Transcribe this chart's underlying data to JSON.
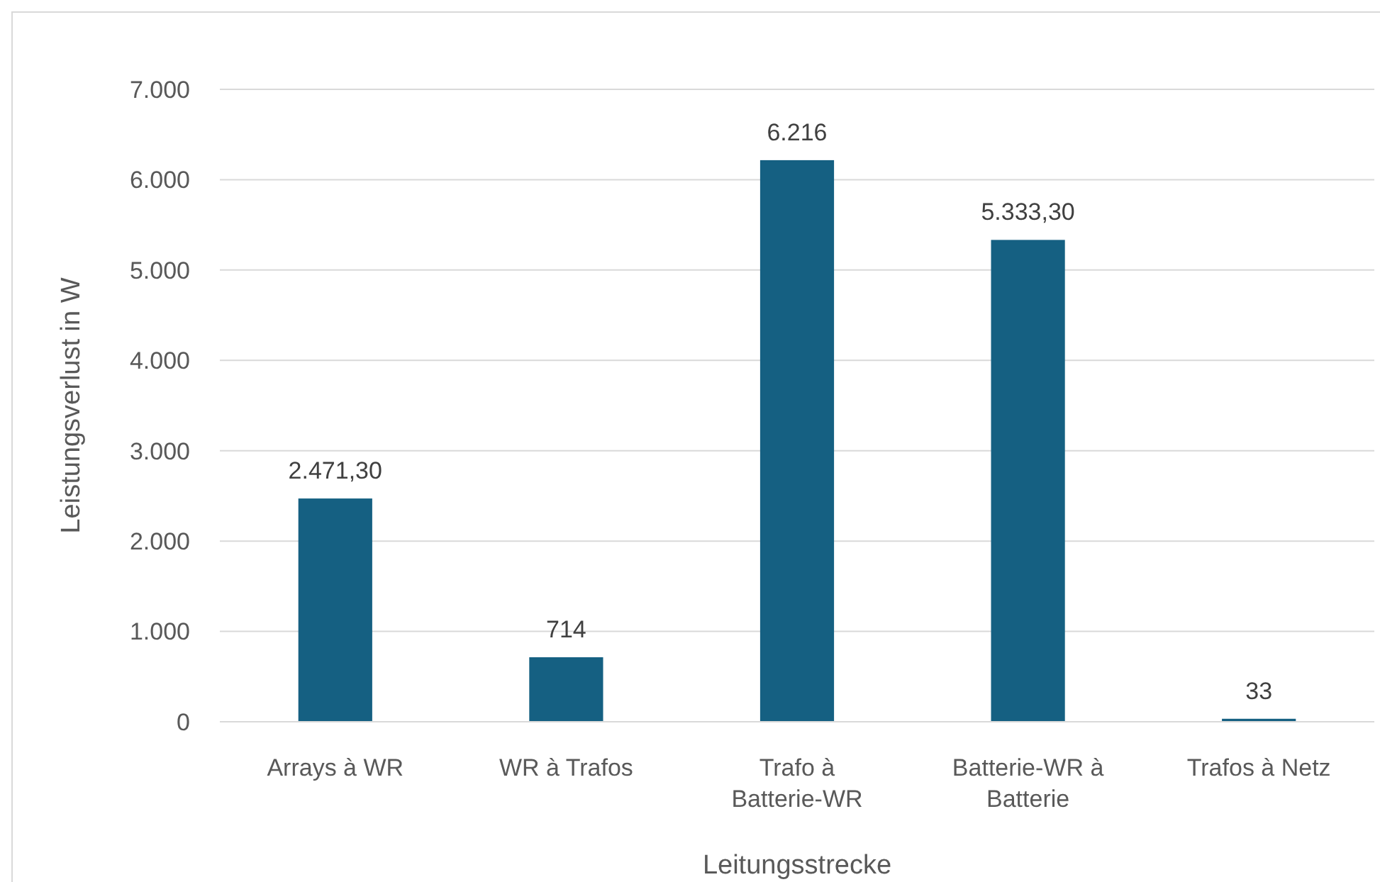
{
  "chart_data": {
    "type": "bar",
    "xlabel": "Leitungsstrecke",
    "ylabel": "Leistungsverlust in W",
    "categories": [
      "Arrays à WR",
      "WR à Trafos",
      "Trafo à Batterie-WR",
      "Batterie-WR à Batterie",
      "Trafos à Netz"
    ],
    "values": [
      2471.3,
      714,
      6216,
      5333.3,
      33
    ],
    "value_labels": [
      "2.471,30",
      "714",
      "6.216",
      "5.333,30",
      "33"
    ],
    "color": "#156082",
    "ylim": [
      0,
      7000
    ],
    "yticks": [
      {
        "value": 0,
        "label": "0"
      },
      {
        "value": 1000,
        "label": "1.000"
      },
      {
        "value": 2000,
        "label": "2.000"
      },
      {
        "value": 3000,
        "label": "3.000"
      },
      {
        "value": 4000,
        "label": "4.000"
      },
      {
        "value": 5000,
        "label": "5.000"
      },
      {
        "value": 6000,
        "label": "6.000"
      },
      {
        "value": 7000,
        "label": "7.000"
      }
    ],
    "grid": "y"
  }
}
